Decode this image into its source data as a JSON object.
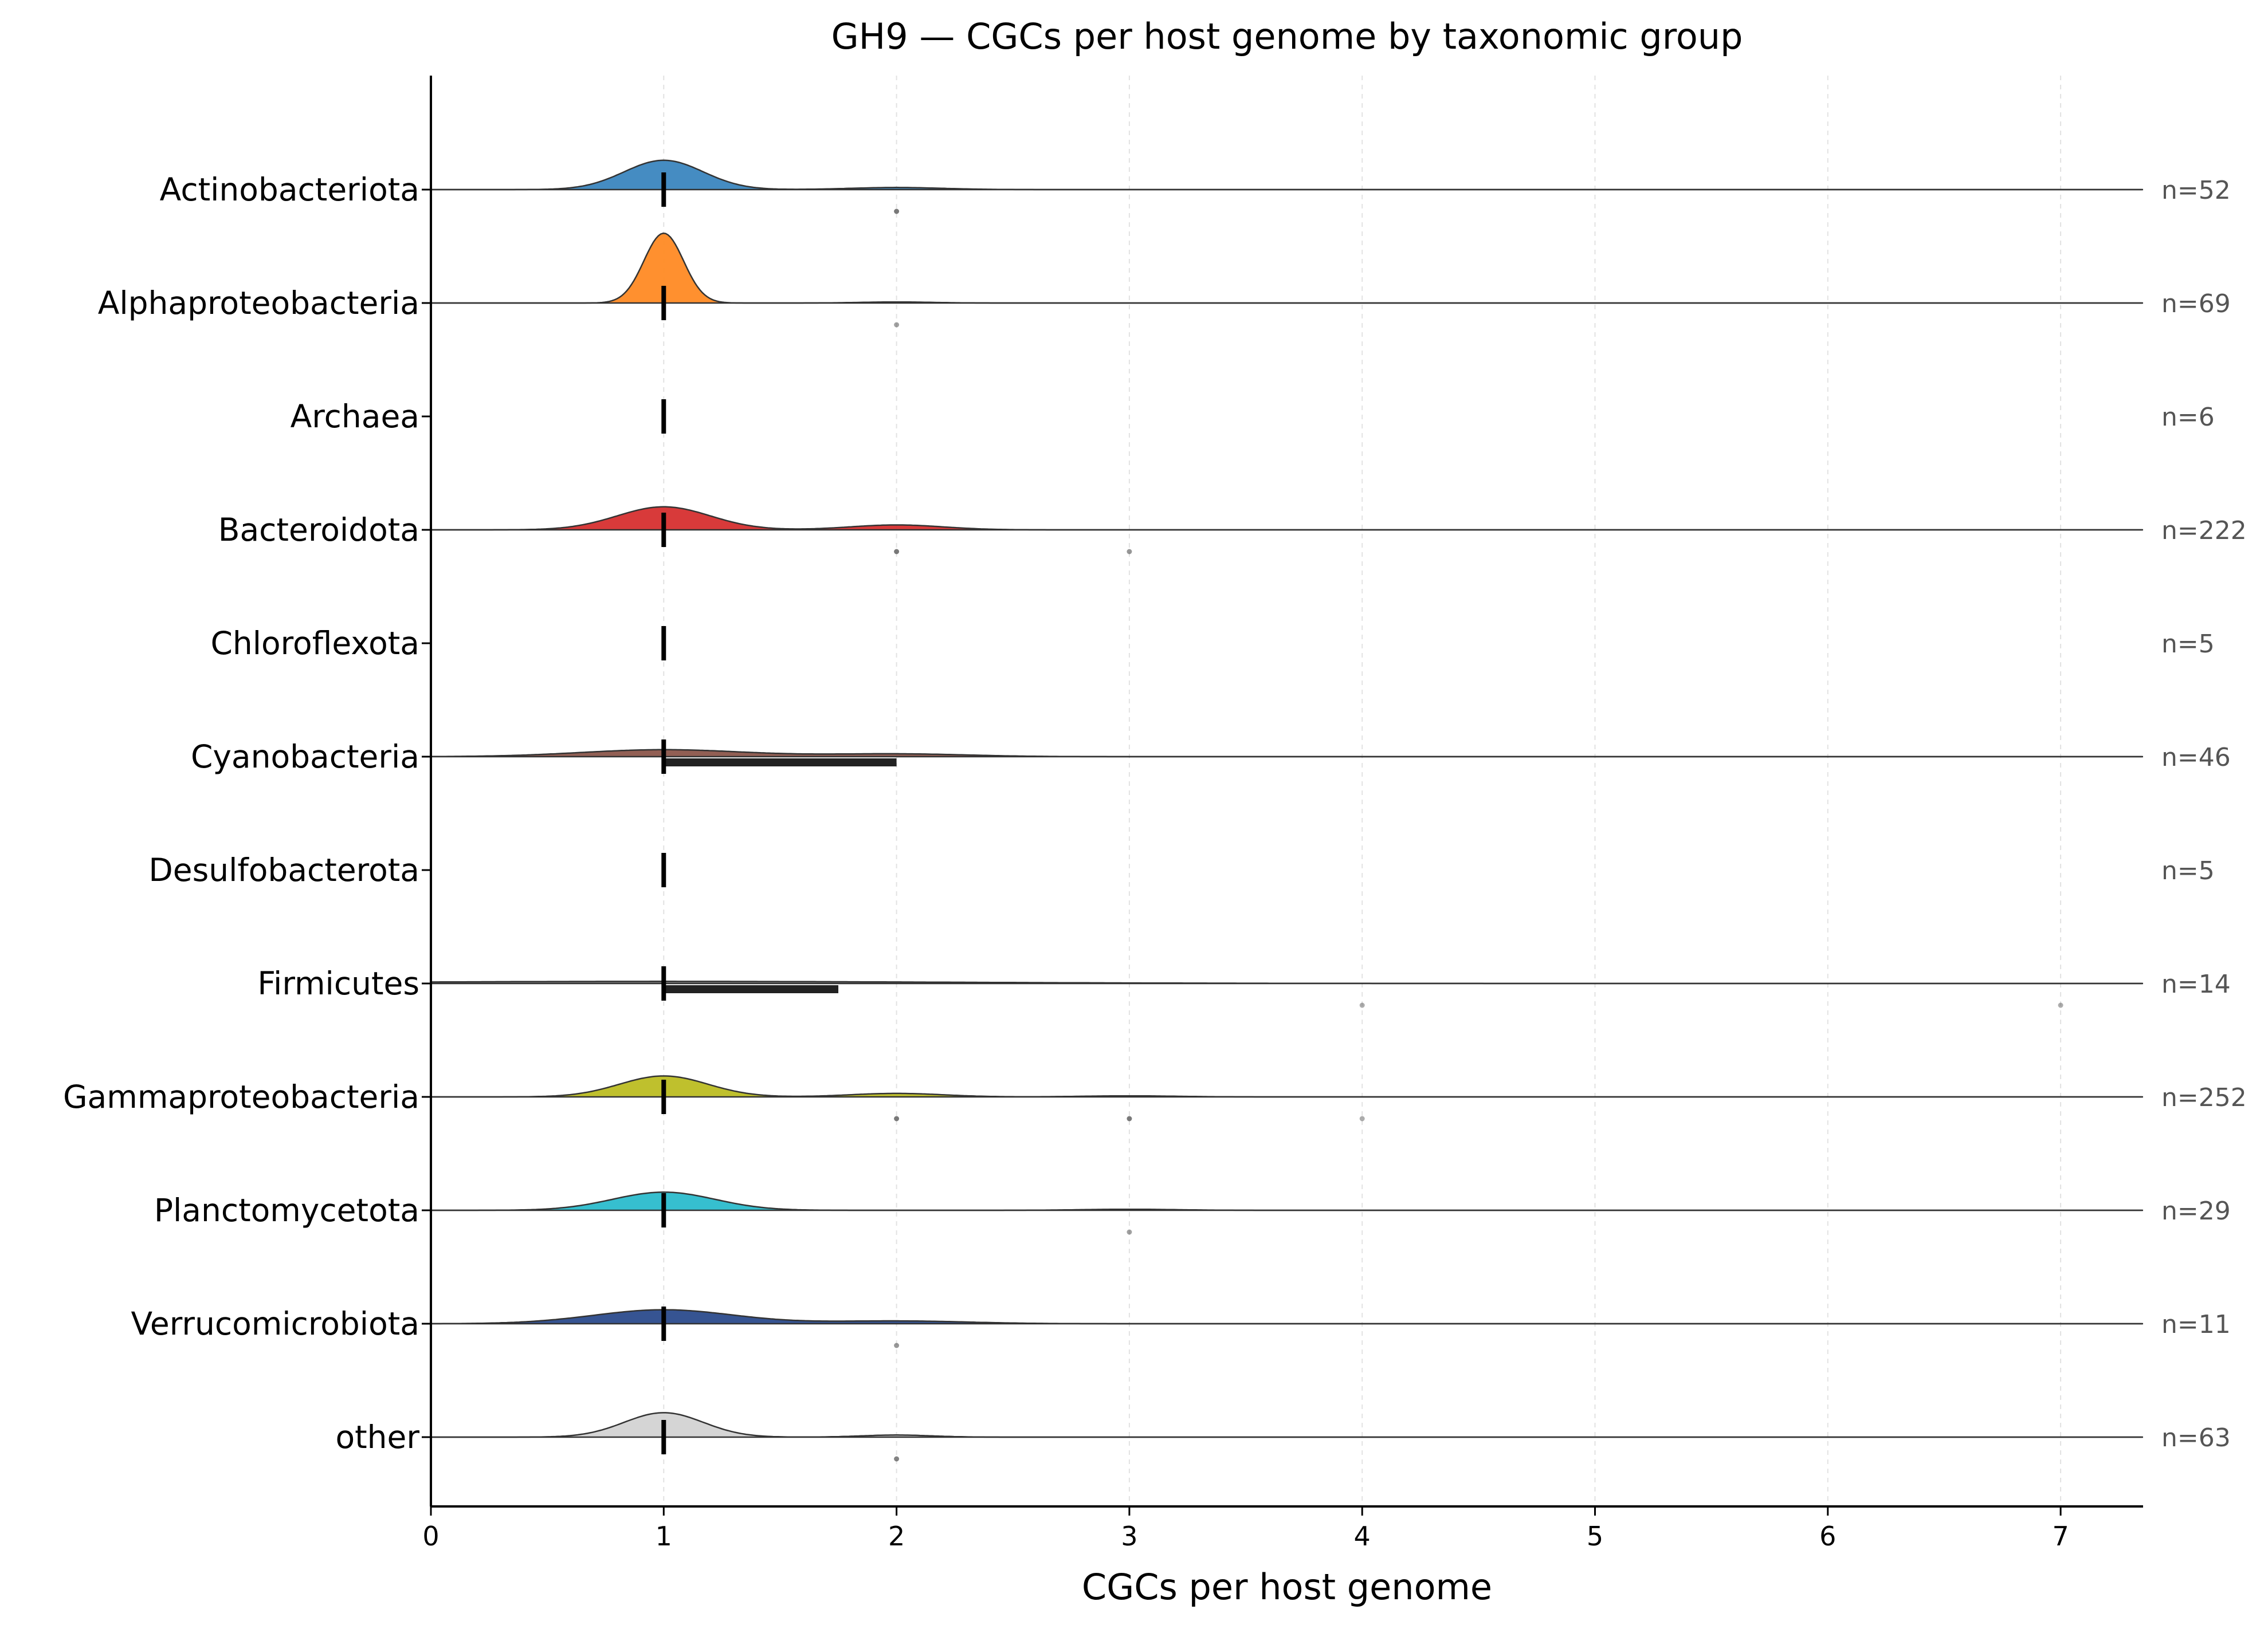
{
  "chart_data": {
    "type": "ridgeline",
    "title": "GH9 — CGCs per host genome by taxonomic group",
    "xlabel": "CGCs per host genome",
    "ylabel": "",
    "xlim": [
      0,
      7.35
    ],
    "x_ticks": [
      0,
      1,
      2,
      3,
      4,
      5,
      6,
      7
    ],
    "grid": "vertical-dashed",
    "groups": [
      {
        "name": "Actinobacteriota",
        "n_label": "n=52",
        "color": "#3b86bf",
        "median": 1,
        "iqr": [
          1,
          1
        ],
        "density_peaks": [
          {
            "x": 1,
            "h": 0.42,
            "w": 0.17
          },
          {
            "x": 2,
            "h": 0.03,
            "w": 0.2
          }
        ],
        "outliers": [
          {
            "x": 2,
            "strength": 0.9
          }
        ]
      },
      {
        "name": "Alphaproteobacteria",
        "n_label": "n=69",
        "color": "#ff8a24",
        "median": 1,
        "iqr": [
          1,
          1
        ],
        "density_peaks": [
          {
            "x": 1,
            "h": 1.0,
            "w": 0.085
          },
          {
            "x": 2,
            "h": 0.015,
            "w": 0.15
          }
        ],
        "outliers": [
          {
            "x": 2,
            "strength": 0.5
          }
        ]
      },
      {
        "name": "Archaea",
        "n_label": "n=6",
        "color": "#2ca02c",
        "median": 1,
        "iqr": [
          1,
          1
        ],
        "density_peaks": [],
        "outliers": []
      },
      {
        "name": "Bacteroidota",
        "n_label": "n=222",
        "color": "#d62f2f",
        "median": 1,
        "iqr": [
          1,
          1
        ],
        "density_peaks": [
          {
            "x": 1,
            "h": 0.33,
            "w": 0.2
          },
          {
            "x": 2,
            "h": 0.07,
            "w": 0.2
          }
        ],
        "outliers": [
          {
            "x": 2,
            "strength": 0.9
          },
          {
            "x": 3,
            "strength": 0.6
          }
        ]
      },
      {
        "name": "Chloroflexota",
        "n_label": "n=5",
        "color": "#9467bd",
        "median": 1,
        "iqr": [
          1,
          1
        ],
        "density_peaks": [],
        "outliers": []
      },
      {
        "name": "Cyanobacteria",
        "n_label": "n=46",
        "color": "#8c564b",
        "median": 1,
        "iqr": [
          1,
          2
        ],
        "density_peaks": [
          {
            "x": 1,
            "h": 0.1,
            "w": 0.35
          },
          {
            "x": 2,
            "h": 0.04,
            "w": 0.3
          }
        ],
        "outliers": []
      },
      {
        "name": "Desulfobacterota",
        "n_label": "n=5",
        "color": "#e377c2",
        "median": 1,
        "iqr": [
          1,
          1
        ],
        "density_peaks": [],
        "outliers": []
      },
      {
        "name": "Firmicutes",
        "n_label": "n=14",
        "color": "#7f7f7f",
        "median": 1,
        "iqr": [
          1,
          1.75
        ],
        "density_peaks": [
          {
            "x": 1,
            "h": 0.03,
            "w": 1.2
          }
        ],
        "outliers": [
          {
            "x": 4,
            "strength": 0.4
          },
          {
            "x": 7,
            "strength": 0.4
          }
        ]
      },
      {
        "name": "Gammaproteobacteria",
        "n_label": "n=252",
        "color": "#bcbd22",
        "median": 1,
        "iqr": [
          1,
          1
        ],
        "density_peaks": [
          {
            "x": 1,
            "h": 0.3,
            "w": 0.19
          },
          {
            "x": 2,
            "h": 0.05,
            "w": 0.2
          },
          {
            "x": 3,
            "h": 0.015,
            "w": 0.2
          }
        ],
        "outliers": [
          {
            "x": 2,
            "strength": 0.9
          },
          {
            "x": 3,
            "strength": 0.9
          },
          {
            "x": 4,
            "strength": 0.4
          }
        ]
      },
      {
        "name": "Planctomycetota",
        "n_label": "n=29",
        "color": "#2bbccc",
        "median": 1,
        "iqr": [
          1,
          1
        ],
        "density_peaks": [
          {
            "x": 1,
            "h": 0.26,
            "w": 0.22
          },
          {
            "x": 3,
            "h": 0.015,
            "w": 0.2
          }
        ],
        "outliers": [
          {
            "x": 3,
            "strength": 0.5
          }
        ]
      },
      {
        "name": "Verrucomicrobiota",
        "n_label": "n=11",
        "color": "#2b4b8c",
        "median": 1,
        "iqr": [
          1,
          1
        ],
        "density_peaks": [
          {
            "x": 1,
            "h": 0.2,
            "w": 0.3
          },
          {
            "x": 2,
            "h": 0.04,
            "w": 0.3
          }
        ],
        "outliers": [
          {
            "x": 2,
            "strength": 0.6
          }
        ]
      },
      {
        "name": "other",
        "n_label": "n=63",
        "color": "#d3d3d3",
        "median": 1,
        "iqr": [
          1,
          1
        ],
        "density_peaks": [
          {
            "x": 1,
            "h": 0.35,
            "w": 0.17
          },
          {
            "x": 2,
            "h": 0.03,
            "w": 0.15
          }
        ],
        "outliers": [
          {
            "x": 2,
            "strength": 0.8
          }
        ]
      }
    ]
  }
}
